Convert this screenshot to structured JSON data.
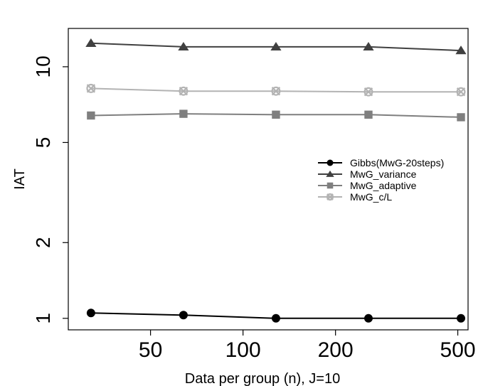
{
  "chart_data": {
    "type": "line",
    "xlabel": "Data per group (n), J=10",
    "ylabel": "IAT",
    "x_scale": "log",
    "y_scale": "log",
    "xlim": [
      27,
      540
    ],
    "ylim": [
      0.9,
      14.2
    ],
    "xticks": [
      {
        "value": 50,
        "label": "50"
      },
      {
        "value": 100,
        "label": "100"
      },
      {
        "value": 200,
        "label": "200"
      },
      {
        "value": 500,
        "label": "500"
      }
    ],
    "yticks": [
      {
        "value": 1,
        "label": "1"
      },
      {
        "value": 2,
        "label": "2"
      },
      {
        "value": 5,
        "label": "5"
      },
      {
        "value": 10,
        "label": "10"
      }
    ],
    "x": [
      32,
      64,
      128,
      256,
      512
    ],
    "legend_position": "right",
    "grid": false,
    "series": [
      {
        "name": "Gibbs(MwG-20steps)",
        "marker": "circle",
        "color": "#000000",
        "values": [
          1.05,
          1.03,
          1.0,
          1.0,
          1.0
        ]
      },
      {
        "name": "MwG_variance",
        "marker": "triangle",
        "color": "#404040",
        "values": [
          12.4,
          12.0,
          12.0,
          12.0,
          11.6
        ]
      },
      {
        "name": "MwG_adaptive",
        "marker": "square",
        "color": "#7f7f7f",
        "values": [
          6.4,
          6.5,
          6.45,
          6.45,
          6.3
        ]
      },
      {
        "name": "MwG_c/L",
        "marker": "crossed-circle",
        "color": "#b3b3b3",
        "values": [
          8.2,
          8.0,
          8.0,
          7.95,
          7.95
        ]
      }
    ]
  }
}
